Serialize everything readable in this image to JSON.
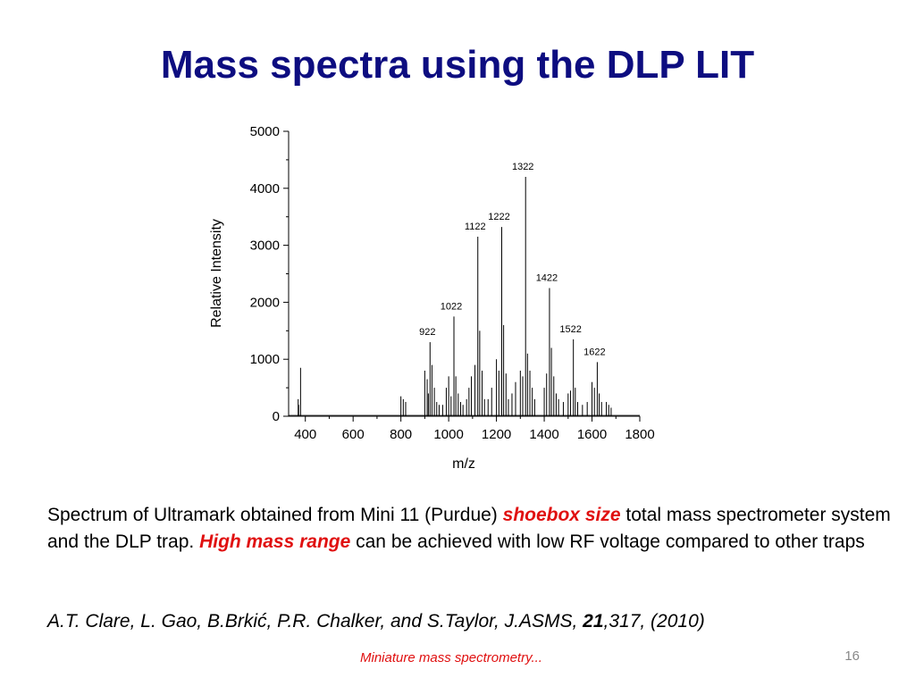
{
  "slide": {
    "title": "Mass spectra using the DLP LIT",
    "caption": {
      "part1": "Spectrum of Ultramark obtained from Mini 11 (Purdue) ",
      "em1": "shoebox size",
      "part2": " total mass spectrometer system and the DLP trap. ",
      "em2": "High mass range",
      "part3": " can be achieved with low RF voltage compared to other traps"
    },
    "citation": {
      "part1": "A.T. Clare, L. Gao, B.Brkić, P.R. Chalker, and S.Taylor, J.ASMS, ",
      "volume": "21",
      "part2": ",317, (2010)"
    },
    "footer": "Miniature mass spectrometry...",
    "page_number": "16",
    "colors": {
      "title": "#0d0d80",
      "emphasis": "#e01010",
      "page_number": "#888888"
    }
  },
  "chart_data": {
    "type": "line",
    "title": "",
    "xlabel": "m/z",
    "ylabel": "Relative Intensity",
    "xlim": [
      330,
      1800
    ],
    "ylim": [
      0,
      5000
    ],
    "xticks": [
      400,
      600,
      800,
      1000,
      1200,
      1400,
      1600,
      1800
    ],
    "yticks": [
      0,
      1000,
      2000,
      3000,
      4000,
      5000
    ],
    "grid": false,
    "peak_labels": [
      {
        "label": "922",
        "x": 922,
        "y": 1300
      },
      {
        "label": "1022",
        "x": 1022,
        "y": 1750
      },
      {
        "label": "1122",
        "x": 1122,
        "y": 3150
      },
      {
        "label": "1222",
        "x": 1222,
        "y": 3320
      },
      {
        "label": "1322",
        "x": 1322,
        "y": 4200
      },
      {
        "label": "1422",
        "x": 1422,
        "y": 2250
      },
      {
        "label": "1522",
        "x": 1522,
        "y": 1350
      },
      {
        "label": "1622",
        "x": 1622,
        "y": 950
      }
    ],
    "peaks": [
      {
        "x": 370,
        "y": 300
      },
      {
        "x": 372,
        "y": 200
      },
      {
        "x": 380,
        "y": 850
      },
      {
        "x": 800,
        "y": 350
      },
      {
        "x": 810,
        "y": 300
      },
      {
        "x": 820,
        "y": 250
      },
      {
        "x": 900,
        "y": 800
      },
      {
        "x": 910,
        "y": 650
      },
      {
        "x": 915,
        "y": 400
      },
      {
        "x": 922,
        "y": 1300
      },
      {
        "x": 930,
        "y": 900
      },
      {
        "x": 940,
        "y": 500
      },
      {
        "x": 950,
        "y": 250
      },
      {
        "x": 960,
        "y": 200
      },
      {
        "x": 975,
        "y": 200
      },
      {
        "x": 990,
        "y": 500
      },
      {
        "x": 1000,
        "y": 700
      },
      {
        "x": 1010,
        "y": 350
      },
      {
        "x": 1022,
        "y": 1750
      },
      {
        "x": 1030,
        "y": 700
      },
      {
        "x": 1040,
        "y": 400
      },
      {
        "x": 1050,
        "y": 250
      },
      {
        "x": 1060,
        "y": 200
      },
      {
        "x": 1075,
        "y": 300
      },
      {
        "x": 1085,
        "y": 500
      },
      {
        "x": 1095,
        "y": 700
      },
      {
        "x": 1110,
        "y": 900
      },
      {
        "x": 1122,
        "y": 3150
      },
      {
        "x": 1130,
        "y": 1500
      },
      {
        "x": 1140,
        "y": 800
      },
      {
        "x": 1150,
        "y": 300
      },
      {
        "x": 1165,
        "y": 300
      },
      {
        "x": 1180,
        "y": 500
      },
      {
        "x": 1200,
        "y": 1000
      },
      {
        "x": 1210,
        "y": 800
      },
      {
        "x": 1222,
        "y": 3320
      },
      {
        "x": 1230,
        "y": 1600
      },
      {
        "x": 1240,
        "y": 750
      },
      {
        "x": 1250,
        "y": 300
      },
      {
        "x": 1265,
        "y": 400
      },
      {
        "x": 1280,
        "y": 600
      },
      {
        "x": 1300,
        "y": 800
      },
      {
        "x": 1310,
        "y": 700
      },
      {
        "x": 1322,
        "y": 4200
      },
      {
        "x": 1330,
        "y": 1100
      },
      {
        "x": 1340,
        "y": 800
      },
      {
        "x": 1350,
        "y": 500
      },
      {
        "x": 1360,
        "y": 300
      },
      {
        "x": 1400,
        "y": 500
      },
      {
        "x": 1410,
        "y": 750
      },
      {
        "x": 1422,
        "y": 2250
      },
      {
        "x": 1430,
        "y": 1200
      },
      {
        "x": 1440,
        "y": 700
      },
      {
        "x": 1450,
        "y": 400
      },
      {
        "x": 1460,
        "y": 300
      },
      {
        "x": 1480,
        "y": 250
      },
      {
        "x": 1500,
        "y": 400
      },
      {
        "x": 1510,
        "y": 450
      },
      {
        "x": 1522,
        "y": 1350
      },
      {
        "x": 1530,
        "y": 500
      },
      {
        "x": 1540,
        "y": 250
      },
      {
        "x": 1560,
        "y": 200
      },
      {
        "x": 1580,
        "y": 250
      },
      {
        "x": 1600,
        "y": 600
      },
      {
        "x": 1610,
        "y": 500
      },
      {
        "x": 1622,
        "y": 950
      },
      {
        "x": 1630,
        "y": 400
      },
      {
        "x": 1640,
        "y": 250
      },
      {
        "x": 1660,
        "y": 250
      },
      {
        "x": 1670,
        "y": 200
      },
      {
        "x": 1680,
        "y": 150
      }
    ]
  }
}
